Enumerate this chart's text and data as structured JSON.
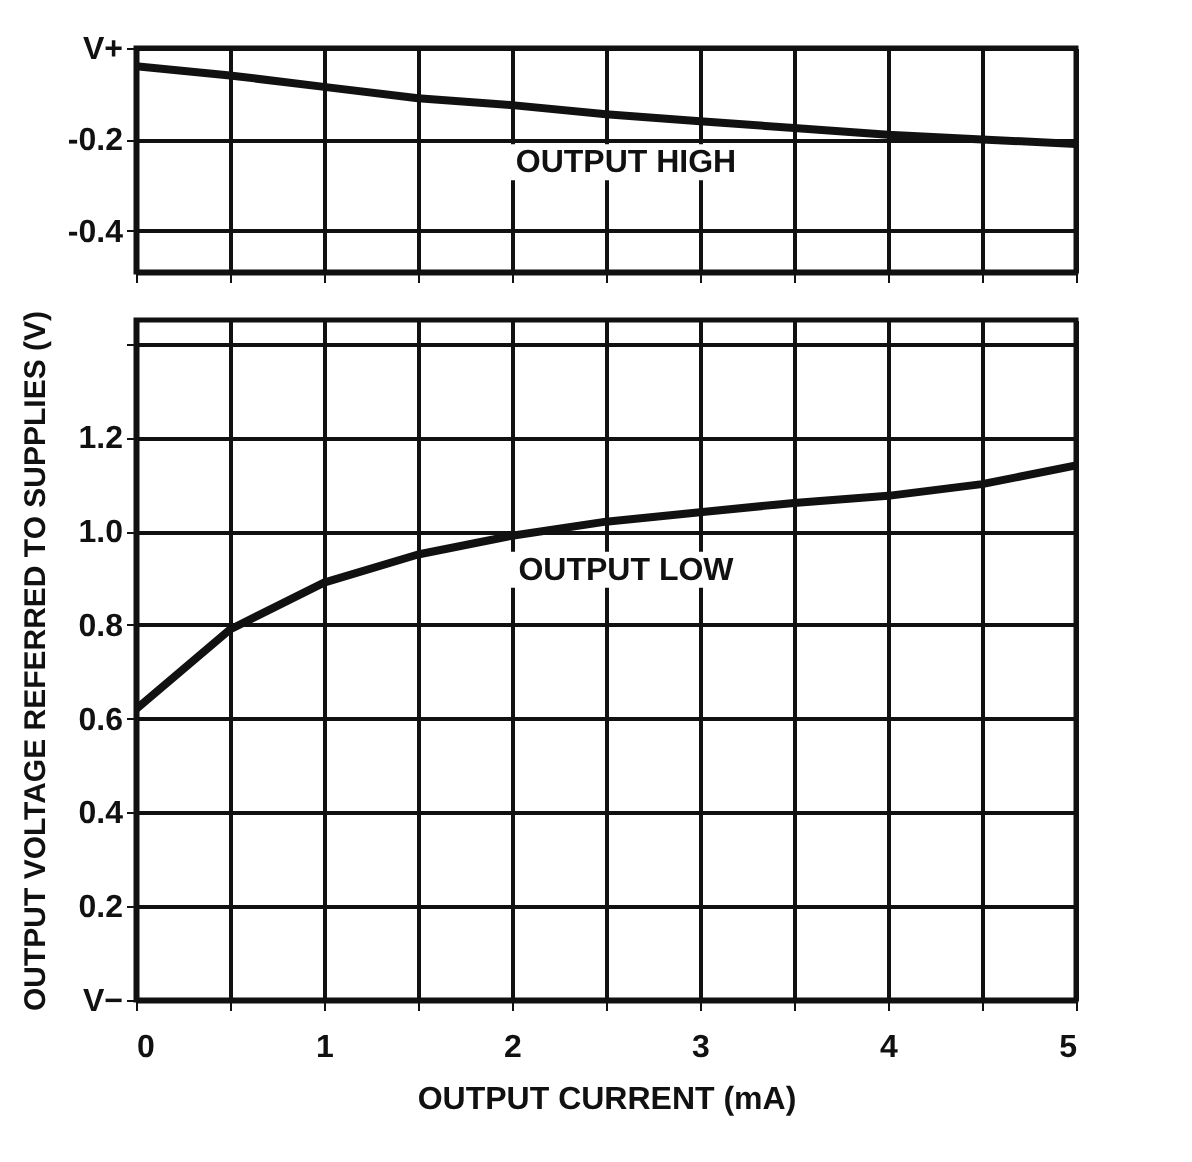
{
  "chart_data": [
    {
      "type": "line",
      "x": [
        0,
        0.5,
        1,
        1.5,
        2,
        2.5,
        3,
        3.5,
        4,
        4.5,
        5
      ],
      "series": [
        {
          "name": "OUTPUT HIGH",
          "color": "#111111",
          "values": [
            -0.04,
            -0.06,
            -0.085,
            -0.11,
            -0.125,
            -0.145,
            -0.16,
            -0.175,
            -0.19,
            -0.2,
            -0.21
          ]
        }
      ],
      "xlim": [
        0,
        5
      ],
      "xticks": [
        0,
        {
          "value": 0.5,
          "label": null
        },
        1,
        {
          "value": 1.5,
          "label": null
        },
        2,
        {
          "value": 2.5,
          "label": null
        },
        3,
        {
          "value": 3.5,
          "label": null
        },
        4,
        {
          "value": 4.5,
          "label": null
        },
        5
      ],
      "ylim": [
        -0.49,
        0
      ],
      "yticks": [
        {
          "value": 0,
          "label": "V+"
        },
        -0.2,
        -0.4
      ],
      "grid": true,
      "legend": false,
      "tick_labels": "y"
    },
    {
      "type": "line",
      "x": [
        0,
        0.5,
        1,
        1.5,
        2,
        2.5,
        3,
        3.5,
        4,
        4.5,
        5
      ],
      "series": [
        {
          "name": "OUTPUT LOW",
          "color": "#111111",
          "values": [
            0.62,
            0.79,
            0.89,
            0.95,
            0.99,
            1.02,
            1.04,
            1.06,
            1.075,
            1.1,
            1.14
          ]
        }
      ],
      "xlabel": "OUTPUT CURRENT (mA)",
      "ylabel": "OUTPUT VOLTAGE REFERRED TO SUPPLIES (V)",
      "xlim": [
        0,
        5
      ],
      "xticks": [
        0,
        {
          "value": 0.5,
          "label": null
        },
        1,
        {
          "value": 1.5,
          "label": null
        },
        2,
        {
          "value": 2.5,
          "label": null
        },
        3,
        {
          "value": 3.5,
          "label": null
        },
        4,
        {
          "value": 4.5,
          "label": null
        },
        5
      ],
      "ylim": [
        0,
        1.45
      ],
      "yticks": [
        {
          "value": 0,
          "label": "V−"
        },
        0.2,
        0.4,
        0.6,
        0.8,
        {
          "value": 1,
          "label": "1.0"
        },
        1.2,
        {
          "value": 1.4,
          "label": null
        }
      ],
      "grid": true,
      "legend": false
    }
  ]
}
